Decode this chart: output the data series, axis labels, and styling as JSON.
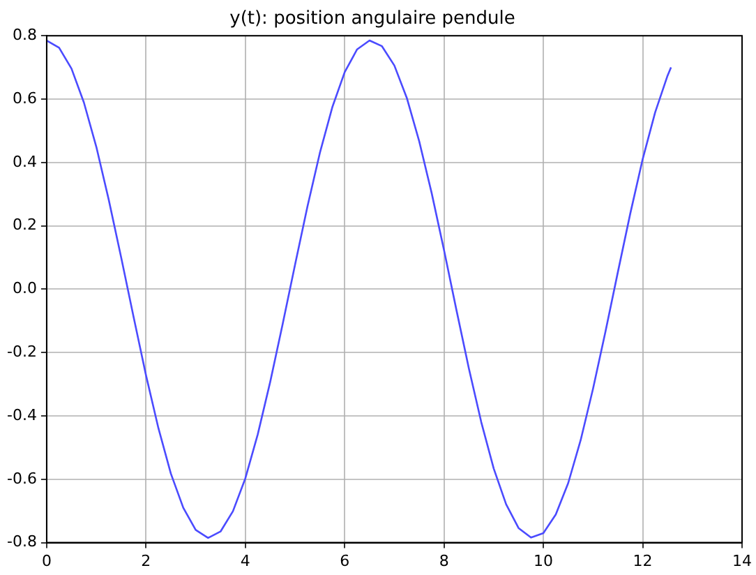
{
  "chart_data": {
    "type": "line",
    "title": "y(t): position angulaire pendule",
    "x": [
      0,
      0.25,
      0.5,
      0.75,
      1,
      1.25,
      1.5,
      1.75,
      2,
      2.25,
      2.5,
      2.75,
      3,
      3.25,
      3.5,
      3.75,
      4,
      4.25,
      4.5,
      4.75,
      5,
      5.25,
      5.5,
      5.75,
      6,
      6.25,
      6.5,
      6.75,
      7,
      7.25,
      7.5,
      7.75,
      8,
      8.25,
      8.5,
      8.75,
      9,
      9.25,
      9.5,
      9.75,
      10,
      10.25,
      10.5,
      10.75,
      11,
      11.25,
      11.5,
      11.75,
      12,
      12.25,
      12.5,
      12.57
    ],
    "series": [
      {
        "color": "#4b4bff",
        "values": [
          0.785,
          0.762,
          0.696,
          0.589,
          0.449,
          0.282,
          0.1,
          -0.088,
          -0.272,
          -0.439,
          -0.582,
          -0.69,
          -0.76,
          -0.785,
          -0.765,
          -0.701,
          -0.597,
          -0.458,
          -0.293,
          -0.111,
          0.077,
          0.261,
          0.43,
          0.574,
          0.685,
          0.757,
          0.785,
          0.767,
          0.706,
          0.604,
          0.467,
          0.304,
          0.123,
          -0.066,
          -0.25,
          -0.42,
          -0.566,
          -0.679,
          -0.754,
          -0.784,
          -0.77,
          -0.711,
          -0.612,
          -0.477,
          -0.314,
          -0.134,
          0.054,
          0.239,
          0.411,
          0.558,
          0.674,
          0.7
        ]
      }
    ],
    "xlim": [
      0,
      14
    ],
    "xticks": [
      0,
      2,
      4,
      6,
      8,
      10,
      12,
      14
    ],
    "ylim": [
      -0.8,
      0.8
    ],
    "yticks": [
      -0.8,
      -0.6,
      -0.4,
      -0.2,
      {
        "value": 0,
        "label": "0.0"
      },
      0.2,
      0.4,
      0.6,
      0.8
    ],
    "grid": true,
    "legend": false,
    "marker": "none",
    "line_style": "solid"
  }
}
